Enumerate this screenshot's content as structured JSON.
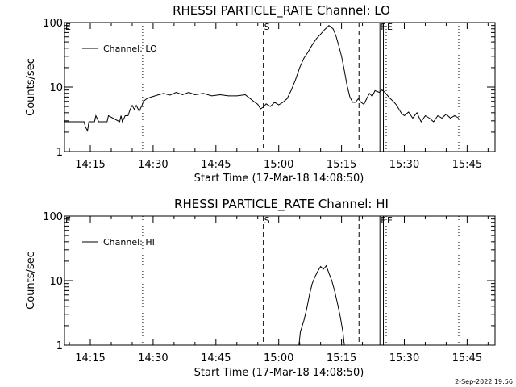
{
  "chart_data": [
    {
      "type": "line",
      "title": "RHESSI PARTICLE_RATE Channel: LO",
      "xlabel": "Start Time (17-Mar-18 14:08:50)",
      "ylabel": "Counts/sec",
      "yscale": "log",
      "ylim": [
        1,
        100
      ],
      "xlim": [
        "14:08:50",
        "15:51:40"
      ],
      "x_ticks": [
        "14:15",
        "14:30",
        "14:45",
        "15:00",
        "15:15",
        "15:30",
        "15:45"
      ],
      "y_ticks": [
        "1",
        "10",
        "100"
      ],
      "legend": {
        "position": "top-left",
        "entries": [
          "Channel: LO"
        ]
      },
      "markers": [
        {
          "label": "E",
          "time": "14:08:50",
          "style": "dotted"
        },
        {
          "label": "",
          "time": "14:27:30",
          "style": "dotted"
        },
        {
          "label": "S",
          "time": "14:56:20",
          "style": "dashed"
        },
        {
          "label": "",
          "time": "15:19:10",
          "style": "dashed"
        },
        {
          "label": "F",
          "time": "15:24:10",
          "style": "solid"
        },
        {
          "label": "",
          "time": "15:25:00",
          "style": "solid"
        },
        {
          "label": "E",
          "time": "15:25:40",
          "style": "dotted"
        },
        {
          "label": "",
          "time": "15:43:00",
          "style": "dotted"
        }
      ],
      "series": [
        {
          "name": "Channel: LO",
          "x": [
            "14:08:50",
            "14:13:30",
            "14:13:50",
            "14:14:20",
            "14:14:40",
            "14:15:00",
            "14:16:00",
            "14:16:20",
            "14:17:00",
            "14:19:00",
            "14:19:20",
            "14:22:00",
            "14:22:20",
            "14:22:40",
            "14:23:20",
            "14:24:00",
            "14:24:30",
            "14:25:00",
            "14:25:30",
            "14:26:00",
            "14:26:40",
            "14:27:20",
            "14:27:40",
            "14:28:30",
            "14:29:30",
            "14:31:00",
            "14:32:30",
            "14:34:00",
            "14:35:30",
            "14:37:00",
            "14:38:30",
            "14:40:00",
            "14:42:00",
            "14:44:00",
            "14:46:00",
            "14:48:00",
            "14:50:00",
            "14:52:00",
            "14:54:00",
            "14:55:00",
            "14:55:40",
            "14:56:20",
            "14:57:00",
            "14:58:00",
            "14:59:00",
            "15:00:00",
            "15:01:00",
            "15:02:00",
            "15:03:00",
            "15:04:00",
            "15:05:00",
            "15:06:00",
            "15:07:00",
            "15:08:00",
            "15:09:00",
            "15:10:00",
            "15:11:00",
            "15:12:00",
            "15:13:00",
            "15:13:40",
            "15:14:20",
            "15:15:00",
            "15:15:40",
            "15:16:20",
            "15:17:00",
            "15:17:40",
            "15:18:20",
            "15:19:00",
            "15:19:40",
            "15:20:20",
            "15:21:00",
            "15:21:40",
            "15:22:20",
            "15:23:00",
            "15:24:00",
            "15:24:40",
            "15:25:20",
            "15:26:00",
            "15:26:40",
            "15:27:20",
            "15:28:00",
            "15:28:40",
            "15:29:20",
            "15:30:00",
            "15:31:00",
            "15:32:00",
            "15:33:00",
            "15:34:00",
            "15:35:00",
            "15:36:00",
            "15:37:00",
            "15:38:00",
            "15:39:00",
            "15:40:00",
            "15:41:00",
            "15:42:00",
            "15:43:00"
          ],
          "y": [
            2.9,
            2.9,
            2.4,
            2.1,
            2.9,
            2.9,
            2.9,
            3.6,
            2.9,
            2.9,
            3.6,
            2.9,
            3.6,
            2.9,
            3.6,
            3.6,
            4.5,
            5.2,
            4.5,
            5.2,
            4.2,
            5.2,
            6.0,
            6.6,
            7.0,
            7.5,
            8.0,
            7.5,
            8.3,
            7.6,
            8.3,
            7.6,
            8.0,
            7.3,
            7.6,
            7.3,
            7.3,
            7.6,
            6.0,
            5.4,
            4.6,
            4.9,
            5.5,
            5.0,
            5.8,
            5.3,
            5.8,
            6.6,
            9.0,
            13.0,
            20.0,
            28.0,
            35.0,
            45.0,
            56.0,
            66.0,
            78.0,
            90.0,
            80.0,
            62.0,
            44.0,
            30.0,
            18.0,
            10.5,
            7.0,
            5.8,
            5.8,
            6.6,
            5.8,
            5.4,
            6.6,
            8.0,
            7.2,
            8.8,
            8.3,
            9.0,
            8.3,
            7.4,
            6.6,
            6.0,
            5.4,
            4.6,
            3.9,
            3.6,
            4.1,
            3.3,
            4.0,
            2.9,
            3.6,
            3.3,
            2.9,
            3.6,
            3.3,
            3.8,
            3.3,
            3.6,
            3.3
          ]
        }
      ]
    },
    {
      "type": "line",
      "title": "RHESSI PARTICLE_RATE Channel: HI",
      "xlabel": "Start Time (17-Mar-18 14:08:50)",
      "ylabel": "Counts/sec",
      "yscale": "log",
      "ylim": [
        1,
        100
      ],
      "xlim": [
        "14:08:50",
        "15:51:40"
      ],
      "x_ticks": [
        "14:15",
        "14:30",
        "14:45",
        "15:00",
        "15:15",
        "15:30",
        "15:45"
      ],
      "y_ticks": [
        "1",
        "10",
        "100"
      ],
      "legend": {
        "position": "top-left",
        "entries": [
          "Channel: HI"
        ]
      },
      "markers": [
        {
          "label": "E",
          "time": "14:08:50",
          "style": "dotted"
        },
        {
          "label": "",
          "time": "14:27:30",
          "style": "dotted"
        },
        {
          "label": "S",
          "time": "14:56:20",
          "style": "dashed"
        },
        {
          "label": "",
          "time": "15:19:10",
          "style": "dashed"
        },
        {
          "label": "F",
          "time": "15:24:10",
          "style": "solid"
        },
        {
          "label": "",
          "time": "15:25:00",
          "style": "solid"
        },
        {
          "label": "E",
          "time": "15:25:40",
          "style": "dotted"
        },
        {
          "label": "",
          "time": "15:43:00",
          "style": "dotted"
        }
      ],
      "series": [
        {
          "name": "Channel: HI",
          "x": [
            "15:04:50",
            "15:05:10",
            "15:06:00",
            "15:06:40",
            "15:07:20",
            "15:08:00",
            "15:08:40",
            "15:09:20",
            "15:10:00",
            "15:10:40",
            "15:11:20",
            "15:12:00",
            "15:12:40",
            "15:13:20",
            "15:14:00",
            "15:14:40",
            "15:15:20",
            "15:15:40"
          ],
          "y": [
            1.0,
            1.6,
            2.4,
            3.6,
            6.0,
            9.0,
            11.5,
            14.0,
            16.5,
            15.0,
            17.0,
            13.0,
            10.0,
            7.0,
            4.5,
            2.8,
            1.6,
            1.0
          ]
        }
      ]
    }
  ],
  "footer": {
    "date": "2-Sep-2022 19:56"
  }
}
